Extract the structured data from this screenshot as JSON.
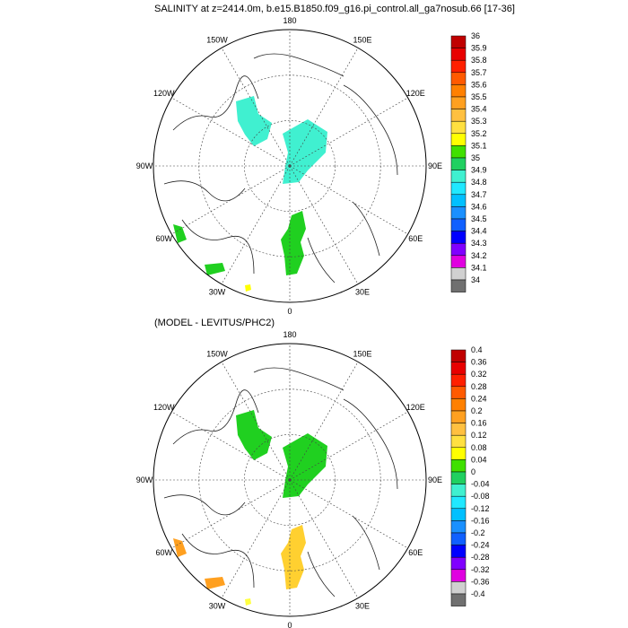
{
  "panels": [
    {
      "title": "SALINITY at z=2414.0m, b.e15.B1850.f09_g16.pi_control.all_ga7nosub.66 [17-36]",
      "lon_labels": [
        "180",
        "150E",
        "120E",
        "90E",
        "60E",
        "30E",
        "0",
        "30W",
        "60W",
        "90W",
        "120W",
        "150W"
      ],
      "colorbar": {
        "labels": [
          "36",
          "35.9",
          "35.8",
          "35.7",
          "35.6",
          "35.5",
          "35.4",
          "35.3",
          "35.2",
          "35.1",
          "35",
          "34.9",
          "34.8",
          "34.7",
          "34.6",
          "34.5",
          "34.4",
          "34.3",
          "34.2",
          "34.1",
          "34"
        ],
        "colors": [
          "#c00000",
          "#e80000",
          "#ff2000",
          "#ff5a00",
          "#ff8000",
          "#ffa020",
          "#ffc040",
          "#ffe040",
          "#ffff00",
          "#40e000",
          "#20d060",
          "#40f0d0",
          "#20e8ff",
          "#00c0ff",
          "#1a90ff",
          "#1060ff",
          "#0000ff",
          "#8000ff",
          "#e000e0",
          "#d0d0d0",
          "#707070"
        ]
      },
      "regions": [
        {
          "name": "canada-basin-patch",
          "color": "#40f0d0"
        },
        {
          "name": "eurasian-basin-patch",
          "color": "#40f0d0"
        },
        {
          "name": "fram-strait-patch",
          "color": "#20d020"
        },
        {
          "name": "labrador-patch",
          "color": "#20d020"
        },
        {
          "name": "south-atlantic-patch",
          "color": "#20d020"
        },
        {
          "name": "iceland-patch",
          "color": "#ffff00"
        }
      ]
    },
    {
      "title": "(MODEL - LEVITUS/PHC2)",
      "lon_labels": [
        "180",
        "150E",
        "120E",
        "90E",
        "60E",
        "30E",
        "0",
        "30W",
        "60W",
        "90W",
        "120W",
        "150W"
      ],
      "colorbar": {
        "labels": [
          "0.4",
          "0.36",
          "0.32",
          "0.28",
          "0.24",
          "0.2",
          "0.16",
          "0.12",
          "0.08",
          "0.04",
          "0",
          "-0.04",
          "-0.08",
          "-0.12",
          "-0.16",
          "-0.2",
          "-0.24",
          "-0.28",
          "-0.32",
          "-0.36",
          "-0.4"
        ],
        "colors": [
          "#c00000",
          "#e80000",
          "#ff2000",
          "#ff5a00",
          "#ff8000",
          "#ffa020",
          "#ffc040",
          "#ffe040",
          "#ffff00",
          "#40e000",
          "#20d060",
          "#40f0d0",
          "#20e8ff",
          "#00c0ff",
          "#1a90ff",
          "#1060ff",
          "#0000ff",
          "#8000ff",
          "#e000e0",
          "#d0d0d0",
          "#707070"
        ]
      },
      "regions": [
        {
          "name": "canada-basin-patch",
          "color": "#20d020"
        },
        {
          "name": "eurasian-basin-patch",
          "color": "#20d020"
        },
        {
          "name": "fram-strait-patch",
          "color": "#ffd030"
        },
        {
          "name": "labrador-patch",
          "color": "#ffa020"
        },
        {
          "name": "south-atlantic-patch",
          "color": "#ffa020"
        },
        {
          "name": "yellow-blob",
          "color": "#ffff40"
        }
      ]
    }
  ]
}
